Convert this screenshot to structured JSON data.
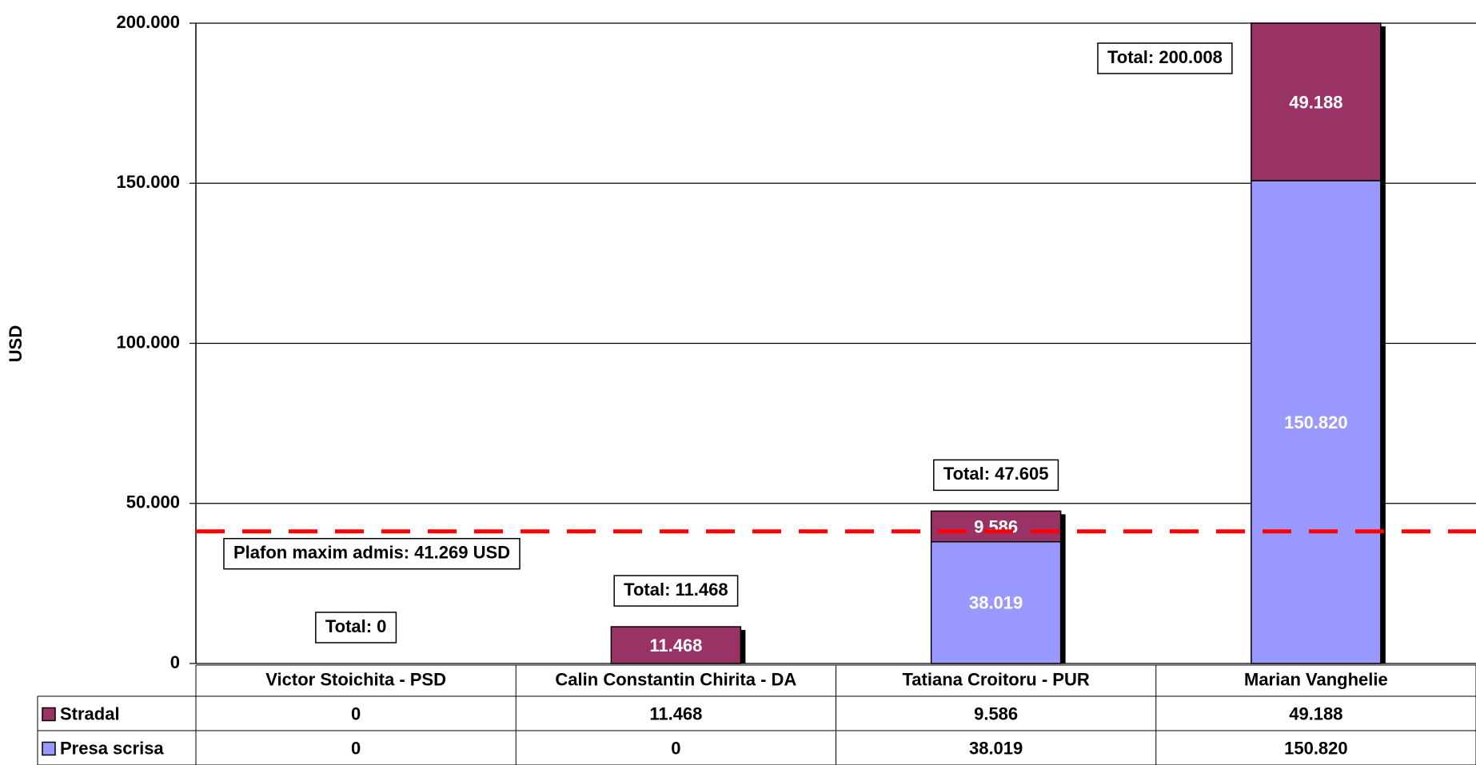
{
  "chart_data": {
    "type": "bar",
    "stacked": true,
    "y_label": "USD",
    "categories": [
      "Victor Stoichita - PSD",
      "Calin Constantin Chirita - DA",
      "Tatiana Croitoru - PUR",
      "Marian Vanghelie"
    ],
    "series": [
      {
        "name": "Presa scrisa",
        "color": "#9999ff",
        "values": [
          0,
          0,
          38019,
          150820
        ],
        "value_labels": [
          "0",
          "0",
          "38.019",
          "150.820"
        ]
      },
      {
        "name": "Stradal",
        "color": "#993366",
        "values": [
          0,
          11468,
          9586,
          49188
        ],
        "value_labels": [
          "0",
          "11.468",
          "9.586",
          "49.188"
        ]
      }
    ],
    "totals": [
      "Total: 0",
      "Total: 11.468",
      "Total: 47.605",
      "Total: 200.008"
    ],
    "threshold": {
      "value": 41269,
      "label": "Plafon maxim admis: 41.269 USD",
      "color": "#ff0000"
    },
    "ylim": [
      0,
      200000
    ],
    "yticks": [
      {
        "value": 0,
        "label": "0"
      },
      {
        "value": 50000,
        "label": "50.000"
      },
      {
        "value": 100000,
        "label": "100.000"
      },
      {
        "value": 150000,
        "label": "150.000"
      },
      {
        "value": 200000,
        "label": "200.000"
      }
    ],
    "grid": true
  }
}
